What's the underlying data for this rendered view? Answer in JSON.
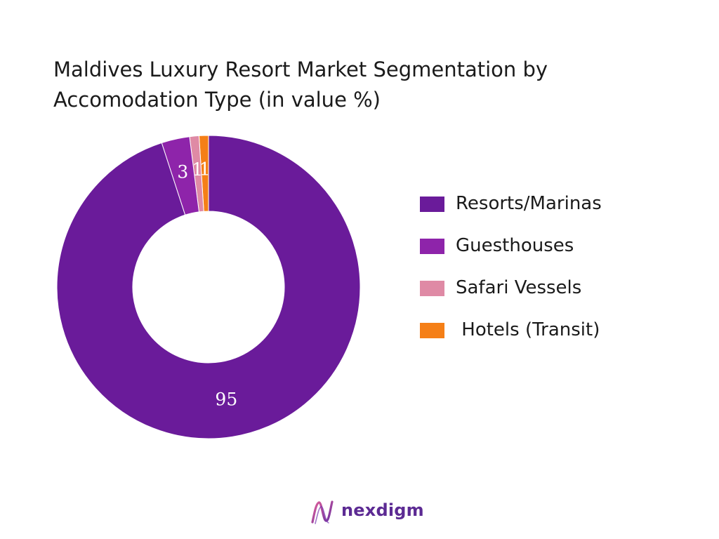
{
  "chart_data": {
    "type": "pie",
    "title": "Maldives Luxury Resort Market Segmentation by Accomodation Type (in value %)",
    "title_lines": [
      "Maldives Luxury Resort Market Segmentation by",
      "Accomodation Type (in value %)"
    ],
    "donut": true,
    "categories": [
      "Resorts/Marinas",
      "Guesthouses",
      "Safari Vessels",
      " Hotels (Transit)"
    ],
    "values": [
      95,
      3,
      1,
      1
    ],
    "colors": [
      "#6a1b9a",
      "#8e24aa",
      "#df8aa5",
      "#f57f17"
    ],
    "legend_position": "right"
  },
  "brand": {
    "name": "nexdigm",
    "logo_icon": "nexdigm-logo-icon"
  }
}
